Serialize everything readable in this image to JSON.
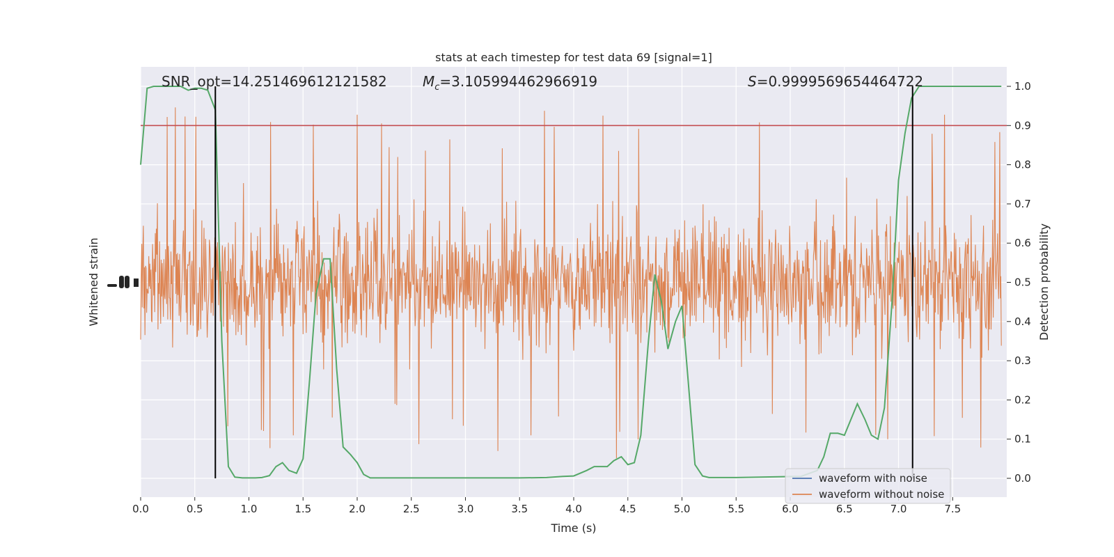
{
  "chart_data": {
    "type": "line",
    "title": "stats at each timestep for test data 69 [signal=1]",
    "xlabel": "Time (s)",
    "ylabel_left": "Whitened strain",
    "ylabel_right": "Detection probability",
    "xlim": [
      0,
      8
    ],
    "ylim_right": [
      -0.05,
      1.05
    ],
    "x_ticks": [
      "0.0",
      "0.5",
      "1.0",
      "1.5",
      "2.0",
      "2.5",
      "3.0",
      "3.5",
      "4.0",
      "4.5",
      "5.0",
      "5.5",
      "6.0",
      "6.5",
      "7.0",
      "7.5"
    ],
    "y_ticks_right": [
      "0.0",
      "0.1",
      "0.2",
      "0.3",
      "0.4",
      "0.5",
      "0.6",
      "0.7",
      "0.8",
      "0.9",
      "1.0"
    ],
    "annotations": {
      "snr": "SNR_opt=14.251469612121582",
      "mc_symbol": "M",
      "mc_sub": "c",
      "mc_value": "=3.105994462966919",
      "s_symbol": "S",
      "s_value": "=0.9999569654464722"
    },
    "threshold": 0.9,
    "vertical_lines_x": [
      0.69,
      7.13
    ],
    "legend": {
      "position": "lower right",
      "entries": [
        {
          "label": "waveform with noise",
          "color": "#4c72b0"
        },
        {
          "label": "waveform without noise",
          "color": "#dd8452"
        }
      ]
    },
    "colors": {
      "background": "#eaeaf2",
      "grid": "#ffffff",
      "noise_trace": "#dd8452",
      "probability": "#55a868",
      "threshold": "#c44e52",
      "vlines": "#000000"
    },
    "noise_trace": {
      "description_range": "dense noisy strain trace fills roughly 0.3-0.7 of probability axis, spikes to ~0.1-0.95",
      "center": 0.5,
      "samples_per_second": 200
    },
    "probability_series": {
      "x": [
        0.0,
        0.06,
        0.12,
        0.19,
        0.25,
        0.31,
        0.37,
        0.44,
        0.5,
        0.56,
        0.62,
        0.69,
        0.75,
        0.81,
        0.87,
        0.94,
        1.0,
        1.06,
        1.12,
        1.19,
        1.25,
        1.31,
        1.37,
        1.44,
        1.5,
        1.56,
        1.62,
        1.69,
        1.75,
        1.81,
        1.87,
        1.94,
        2.0,
        2.06,
        2.12,
        2.19,
        2.5,
        3.0,
        3.5,
        3.75,
        3.9,
        4.0,
        4.12,
        4.19,
        4.25,
        4.31,
        4.37,
        4.44,
        4.5,
        4.56,
        4.62,
        4.69,
        4.75,
        4.81,
        4.87,
        4.94,
        5.0,
        5.06,
        5.12,
        5.19,
        5.25,
        5.5,
        5.9,
        6.1,
        6.25,
        6.31,
        6.37,
        6.44,
        6.5,
        6.56,
        6.62,
        6.69,
        6.75,
        6.81,
        6.87,
        6.94,
        7.0,
        7.06,
        7.12,
        7.19,
        7.25,
        7.5,
        7.95
      ],
      "y": [
        0.8,
        0.995,
        1.0,
        1.0,
        1.0,
        1.0,
        1.0,
        0.99,
        0.995,
        0.995,
        0.99,
        0.94,
        0.35,
        0.03,
        0.003,
        0.001,
        0.001,
        0.001,
        0.002,
        0.007,
        0.03,
        0.04,
        0.02,
        0.013,
        0.05,
        0.25,
        0.47,
        0.56,
        0.56,
        0.28,
        0.08,
        0.06,
        0.04,
        0.01,
        0.001,
        0.001,
        0.001,
        0.001,
        0.001,
        0.002,
        0.005,
        0.006,
        0.02,
        0.03,
        0.03,
        0.03,
        0.045,
        0.055,
        0.035,
        0.04,
        0.11,
        0.35,
        0.52,
        0.45,
        0.33,
        0.4,
        0.44,
        0.24,
        0.035,
        0.006,
        0.002,
        0.002,
        0.004,
        0.005,
        0.02,
        0.055,
        0.115,
        0.115,
        0.11,
        0.15,
        0.19,
        0.15,
        0.11,
        0.1,
        0.18,
        0.45,
        0.76,
        0.88,
        0.97,
        1.0,
        1.0,
        1.0,
        1.0
      ]
    }
  }
}
